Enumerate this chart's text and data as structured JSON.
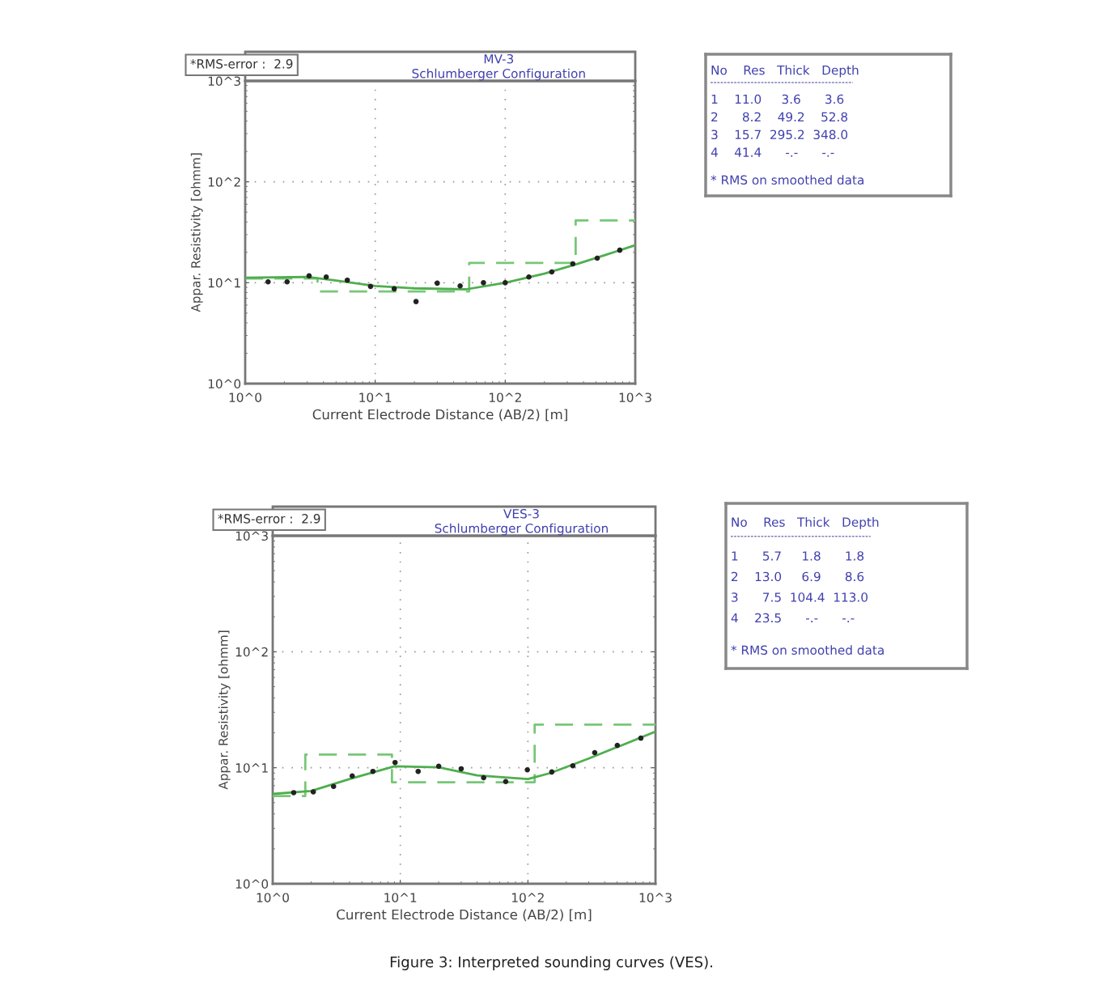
{
  "chart_data": [
    {
      "type": "line",
      "title": "MV-3",
      "subtitle": "Schlumberger Configuration",
      "xlabel": "Current Electrode Distance (AB/2) [m]",
      "ylabel": "Appar. Resistivity [ohmm]",
      "log": "xy",
      "grid": true,
      "xlim": [
        1,
        1000
      ],
      "ylim": [
        1,
        1000
      ],
      "xticks": [
        {
          "value": 1,
          "label": "10^0"
        },
        {
          "value": 10,
          "label": "10^1"
        },
        {
          "value": 100,
          "label": "10^2"
        },
        {
          "value": 1000,
          "label": "10^3"
        }
      ],
      "yticks": [
        {
          "value": 1,
          "label": "10^0"
        },
        {
          "value": 10,
          "label": "10^1"
        },
        {
          "value": 100,
          "label": "10^2"
        },
        {
          "value": 1000,
          "label": "10^3"
        }
      ],
      "annotations": [
        "*RMS-error :  2.9"
      ],
      "series": [
        {
          "type": "line",
          "color": "#77c777",
          "line_style": "dashed",
          "x": [
            1,
            3.6,
            3.6,
            52.8,
            52.8,
            348,
            348,
            1000
          ],
          "values": [
            11.0,
            11.0,
            8.2,
            8.2,
            15.7,
            15.7,
            41.4,
            41.4
          ]
        },
        {
          "type": "line",
          "color": "#4fae4f",
          "line_style": "solid",
          "x": [
            1,
            3,
            5,
            10,
            20,
            50,
            100,
            200,
            350,
            600,
            1000
          ],
          "values": [
            11.2,
            11.4,
            10.5,
            9.3,
            8.8,
            8.6,
            10,
            12.3,
            15.2,
            19,
            23.5
          ]
        },
        {
          "type": "scatter",
          "color": "#222222",
          "marker": "circle",
          "x": [
            1.5,
            2.1,
            3.1,
            4.2,
            6.1,
            9.2,
            14,
            20.6,
            30,
            45,
            68,
            100,
            152,
            228,
            331,
            510,
            760
          ],
          "values": [
            10.2,
            10.2,
            11.7,
            11.4,
            10.6,
            9.2,
            8.7,
            6.5,
            9.9,
            9.3,
            10,
            10,
            11.4,
            12.8,
            15.4,
            17.5,
            21
          ]
        }
      ]
    },
    {
      "type": "other",
      "annotations": [
        "No    Res   Thick   Depth",
        "1    11.0     3.6      3.6",
        "2      8.2    49.2    52.8",
        "3    15.7  295.2  348.0",
        "4    41.4      -.-      -.-",
        "* RMS on smoothed data"
      ]
    },
    {
      "type": "line",
      "title": "VES-3",
      "subtitle": "Schlumberger Configuration",
      "xlabel": "Current Electrode Distance (AB/2) [m]",
      "ylabel": "Appar. Resistivity [ohmm]",
      "log": "xy",
      "grid": true,
      "xlim": [
        1,
        1000
      ],
      "ylim": [
        1,
        1000
      ],
      "xticks": [
        {
          "value": 1,
          "label": "10^0"
        },
        {
          "value": 10,
          "label": "10^1"
        },
        {
          "value": 100,
          "label": "10^2"
        },
        {
          "value": 1000,
          "label": "10^3"
        }
      ],
      "yticks": [
        {
          "value": 1,
          "label": "10^0"
        },
        {
          "value": 10,
          "label": "10^1"
        },
        {
          "value": 100,
          "label": "10^2"
        },
        {
          "value": 1000,
          "label": "10^3"
        }
      ],
      "annotations": [
        "*RMS-error :  2.9",
        "Figure 3: Interpreted sounding curves (VES)."
      ],
      "series": [
        {
          "type": "line",
          "color": "#77c777",
          "line_style": "dashed",
          "x": [
            1,
            1.8,
            1.8,
            8.6,
            8.6,
            113,
            113,
            1000
          ],
          "values": [
            5.7,
            5.7,
            13.0,
            13.0,
            7.5,
            7.5,
            23.5,
            23.5
          ]
        },
        {
          "type": "line",
          "color": "#4fae4f",
          "line_style": "solid",
          "x": [
            1,
            2,
            4,
            9,
            20,
            40,
            100,
            150,
            300,
            1000
          ],
          "values": [
            5.95,
            6.3,
            8,
            10.3,
            10.1,
            8.6,
            8.0,
            9.0,
            12,
            20.5
          ]
        },
        {
          "type": "scatter",
          "color": "#222222",
          "marker": "circle",
          "x": [
            1.46,
            2.08,
            3.0,
            4.2,
            6.1,
            9.1,
            13.8,
            20,
            30,
            45,
            67,
            99,
            154,
            225,
            334,
            502,
            768
          ],
          "values": [
            6.1,
            6.2,
            6.9,
            8.5,
            9.3,
            11.1,
            9.3,
            10.3,
            9.8,
            8.2,
            7.6,
            9.6,
            9.2,
            10.4,
            13.5,
            15.6,
            18.0
          ]
        }
      ]
    },
    {
      "type": "other",
      "annotations": [
        "No    Res   Thick   Depth",
        "1      5.7     1.8      1.8",
        "2    13.0     6.9      8.6",
        "3      7.5  104.4  113.0",
        "4    23.5      -.-      -.-",
        "* RMS on smoothed data"
      ]
    }
  ]
}
